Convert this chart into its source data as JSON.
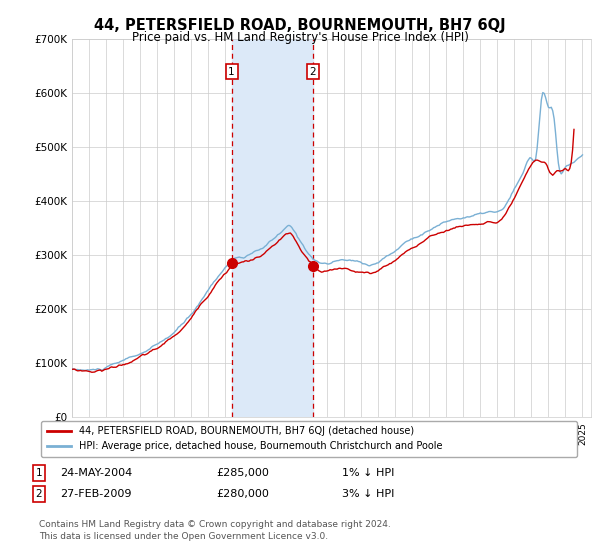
{
  "title": "44, PETERSFIELD ROAD, BOURNEMOUTH, BH7 6QJ",
  "subtitle": "Price paid vs. HM Land Registry's House Price Index (HPI)",
  "title_fontsize": 10.5,
  "subtitle_fontsize": 8.5,
  "ylim": [
    0,
    700000
  ],
  "yticks": [
    0,
    100000,
    200000,
    300000,
    400000,
    500000,
    600000,
    700000
  ],
  "ytick_labels": [
    "£0",
    "£100K",
    "£200K",
    "£300K",
    "£400K",
    "£500K",
    "£600K",
    "£700K"
  ],
  "sale1_date": "24-MAY-2004",
  "sale1_price": 285000,
  "sale1_pct": "1% ↓ HPI",
  "sale1_label": "1",
  "sale1_x": 2004.38,
  "sale2_date": "27-FEB-2009",
  "sale2_price": 280000,
  "sale2_pct": "3% ↓ HPI",
  "sale2_label": "2",
  "sale2_x": 2009.16,
  "shade_color": "#dce9f8",
  "property_color": "#cc0000",
  "hpi_color": "#7ab0d4",
  "legend_property": "44, PETERSFIELD ROAD, BOURNEMOUTH, BH7 6QJ (detached house)",
  "legend_hpi": "HPI: Average price, detached house, Bournemouth Christchurch and Poole",
  "footnote1": "Contains HM Land Registry data © Crown copyright and database right 2024.",
  "footnote2": "This data is licensed under the Open Government Licence v3.0.",
  "background_color": "#ffffff",
  "grid_color": "#cccccc",
  "xlim_left": 1995.0,
  "xlim_right": 2025.5
}
